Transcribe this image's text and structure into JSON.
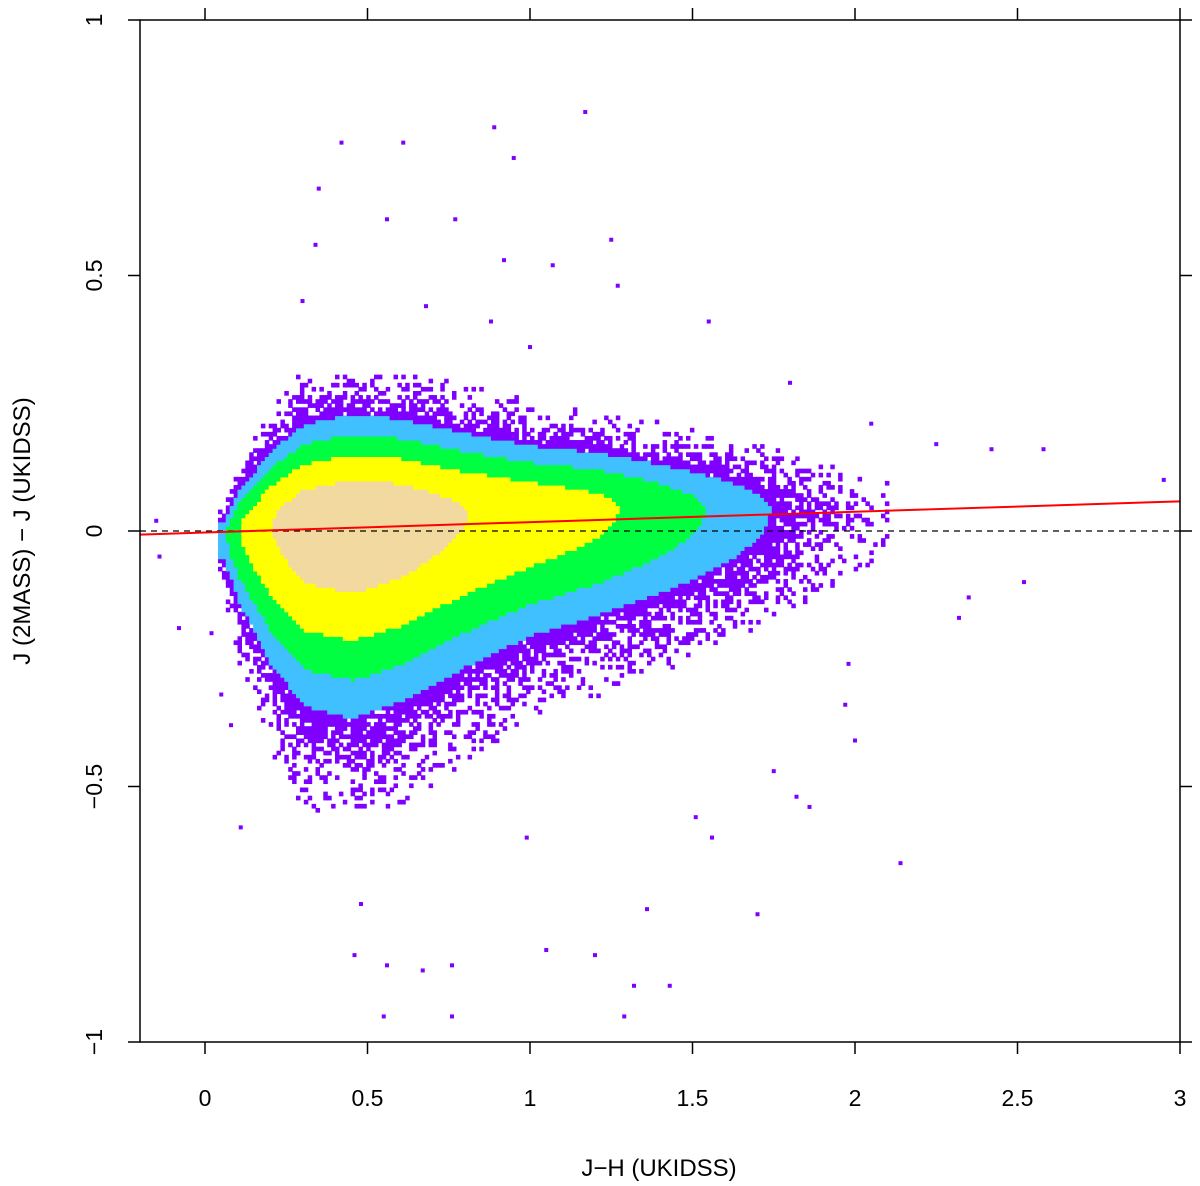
{
  "chart_data": {
    "type": "scatter",
    "title": "",
    "xlabel": "J−H (UKIDSS)",
    "ylabel": "J (2MASS) − J (UKIDSS)",
    "xlim": [
      -0.2,
      3.0
    ],
    "ylim": [
      -1.0,
      1.0
    ],
    "x_ticks": [
      {
        "value": 0,
        "label": "0"
      },
      {
        "value": 0.5,
        "label": "0.5"
      },
      {
        "value": 1,
        "label": "1"
      },
      {
        "value": 1.5,
        "label": "1.5"
      },
      {
        "value": 2,
        "label": "2"
      },
      {
        "value": 2.5,
        "label": "2.5"
      },
      {
        "value": 3,
        "label": "3"
      }
    ],
    "y_ticks": [
      {
        "value": -1,
        "label": "−1"
      },
      {
        "value": -0.5,
        "label": "−0.5"
      },
      {
        "value": 0,
        "label": "0"
      },
      {
        "value": 0.5,
        "label": "0.5"
      },
      {
        "value": 1,
        "label": "1"
      }
    ],
    "density": {
      "description": "2D binned point density; color scale from low (violet) to high (light peach)",
      "color_scale": [
        "#7f00ff",
        "#40c0ff",
        "#00ff40",
        "#ffff00",
        "#f2d9a0"
      ],
      "ridge": [
        {
          "x": 0.05,
          "y_center": -0.01,
          "half_width": 0.04,
          "peak": 0.3
        },
        {
          "x": 0.1,
          "y_center": 0.0,
          "half_width": 0.08,
          "peak": 0.55
        },
        {
          "x": 0.2,
          "y_center": 0.01,
          "half_width": 0.13,
          "peak": 0.8
        },
        {
          "x": 0.3,
          "y_center": 0.015,
          "half_width": 0.16,
          "peak": 0.95
        },
        {
          "x": 0.45,
          "y_center": 0.02,
          "half_width": 0.17,
          "peak": 1.0
        },
        {
          "x": 0.6,
          "y_center": 0.025,
          "half_width": 0.16,
          "peak": 0.95
        },
        {
          "x": 0.8,
          "y_center": 0.03,
          "half_width": 0.14,
          "peak": 0.8
        },
        {
          "x": 1.0,
          "y_center": 0.035,
          "half_width": 0.12,
          "peak": 0.7
        },
        {
          "x": 1.2,
          "y_center": 0.04,
          "half_width": 0.11,
          "peak": 0.6
        },
        {
          "x": 1.4,
          "y_center": 0.04,
          "half_width": 0.1,
          "peak": 0.45
        },
        {
          "x": 1.6,
          "y_center": 0.04,
          "half_width": 0.09,
          "peak": 0.3
        },
        {
          "x": 1.8,
          "y_center": 0.04,
          "half_width": 0.08,
          "peak": 0.15
        },
        {
          "x": 2.0,
          "y_center": 0.04,
          "half_width": 0.07,
          "peak": 0.05
        }
      ],
      "outliers": [
        [
          1.17,
          0.82
        ],
        [
          0.89,
          0.79
        ],
        [
          0.42,
          0.76
        ],
        [
          0.61,
          0.76
        ],
        [
          0.95,
          0.73
        ],
        [
          0.35,
          0.67
        ],
        [
          0.56,
          0.61
        ],
        [
          0.77,
          0.61
        ],
        [
          1.25,
          0.57
        ],
        [
          0.34,
          0.56
        ],
        [
          0.92,
          0.53
        ],
        [
          1.07,
          0.52
        ],
        [
          1.27,
          0.48
        ],
        [
          0.3,
          0.45
        ],
        [
          0.68,
          0.44
        ],
        [
          0.88,
          0.41
        ],
        [
          1.55,
          0.41
        ],
        [
          1.0,
          0.36
        ],
        [
          1.8,
          0.29
        ],
        [
          2.05,
          0.21
        ],
        [
          2.25,
          0.17
        ],
        [
          2.42,
          0.16
        ],
        [
          2.58,
          0.16
        ],
        [
          2.95,
          0.1
        ],
        [
          -0.15,
          0.02
        ],
        [
          -0.14,
          -0.05
        ],
        [
          -0.08,
          -0.19
        ],
        [
          0.02,
          -0.2
        ],
        [
          0.05,
          -0.32
        ],
        [
          0.08,
          -0.38
        ],
        [
          0.11,
          -0.58
        ],
        [
          1.98,
          -0.26
        ],
        [
          1.97,
          -0.34
        ],
        [
          2.0,
          -0.41
        ],
        [
          2.32,
          -0.17
        ],
        [
          2.35,
          -0.13
        ],
        [
          2.52,
          -0.1
        ],
        [
          1.75,
          -0.47
        ],
        [
          1.82,
          -0.52
        ],
        [
          1.86,
          -0.54
        ],
        [
          2.14,
          -0.65
        ],
        [
          1.7,
          -0.75
        ],
        [
          0.46,
          -0.83
        ],
        [
          0.48,
          -0.73
        ],
        [
          0.56,
          -0.85
        ],
        [
          0.76,
          -0.85
        ],
        [
          1.32,
          -0.89
        ],
        [
          1.43,
          -0.89
        ],
        [
          0.55,
          -0.95
        ],
        [
          0.76,
          -0.95
        ],
        [
          1.29,
          -0.95
        ],
        [
          1.2,
          -0.83
        ],
        [
          1.05,
          -0.82
        ],
        [
          0.67,
          -0.86
        ],
        [
          0.99,
          -0.6
        ],
        [
          1.51,
          -0.56
        ],
        [
          1.56,
          -0.6
        ],
        [
          1.36,
          -0.74
        ]
      ]
    },
    "reference_line": {
      "y": 0,
      "style": "dashed",
      "color": "#000000"
    },
    "fit_line": {
      "color": "#ff0000",
      "points": [
        [
          -0.2,
          -0.007
        ],
        [
          3.0,
          0.058
        ]
      ]
    }
  }
}
